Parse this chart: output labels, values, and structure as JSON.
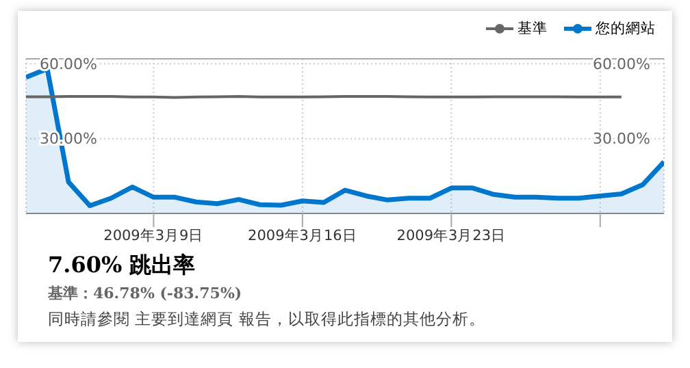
{
  "chart_data": {
    "type": "line",
    "x": [
      "2009-03-03",
      "2009-03-04",
      "2009-03-05",
      "2009-03-06",
      "2009-03-07",
      "2009-03-08",
      "2009-03-09",
      "2009-03-10",
      "2009-03-11",
      "2009-03-12",
      "2009-03-13",
      "2009-03-14",
      "2009-03-15",
      "2009-03-16",
      "2009-03-17",
      "2009-03-18",
      "2009-03-19",
      "2009-03-20",
      "2009-03-21",
      "2009-03-22",
      "2009-03-23",
      "2009-03-24",
      "2009-03-25",
      "2009-03-26",
      "2009-03-27",
      "2009-03-28",
      "2009-03-29",
      "2009-03-30",
      "2009-03-31",
      "2009-04-01",
      "2009-04-02"
    ],
    "series": [
      {
        "name": "基準",
        "type": "line",
        "color": "#666666",
        "values": [
          46.8,
          46.8,
          46.9,
          46.9,
          46.9,
          46.7,
          46.7,
          46.5,
          46.7,
          46.8,
          46.9,
          46.7,
          46.7,
          46.7,
          46.8,
          46.9,
          46.9,
          46.9,
          46.8,
          46.7,
          46.7,
          46.7,
          46.8,
          46.8,
          46.8,
          46.8,
          46.7,
          46.7,
          46.7,
          null,
          null
        ]
      },
      {
        "name": "您的網站",
        "type": "area",
        "color": "#0077cc",
        "values": [
          54.6,
          58,
          12.6,
          3.1,
          6.1,
          10.6,
          6.5,
          6.5,
          4.6,
          3.9,
          5.6,
          3.5,
          3.3,
          5,
          4.4,
          9.3,
          7,
          5.4,
          6.1,
          6.1,
          10.2,
          10.2,
          7.6,
          6.5,
          6.5,
          6.1,
          6.1,
          7,
          7.8,
          11.5,
          20.7
        ]
      }
    ],
    "xlim": [
      "2009-03-03",
      "2009-04-02"
    ],
    "xticks": [
      {
        "value": "2009-03-09",
        "label": "2009年3月9日"
      },
      {
        "value": "2009-03-16",
        "label": "2009年3月16日"
      },
      {
        "value": "2009-03-23",
        "label": "2009年3月23日"
      },
      {
        "value": "2009-03-30",
        "label": null
      }
    ],
    "ylim": [
      0,
      62
    ],
    "yticks": [
      {
        "value": 30,
        "label": "30.00%"
      },
      {
        "value": 60,
        "label": "60.00%"
      }
    ],
    "y2lim": [
      0,
      62
    ],
    "y2ticks": [
      {
        "value": 30,
        "label": "30.00%"
      },
      {
        "value": 60,
        "label": "60.00%"
      }
    ],
    "grid": true,
    "legend": "top right",
    "annotations": [
      "7.60% 跳出率",
      "基準：46.78% (-83.75%)",
      "同時請參閱 主要到達網頁 報告，以取得此指標的其他分析。"
    ]
  }
}
